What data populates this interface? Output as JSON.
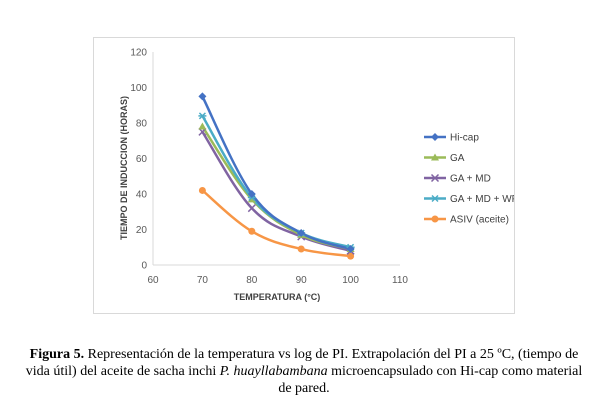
{
  "chart_data": {
    "type": "line",
    "xlabel": "TEMPERATURA (°C)",
    "ylabel": "TIEMPO DE INDUCCION (HORAS)",
    "xlim": [
      60,
      110
    ],
    "ylim": [
      0,
      120
    ],
    "xticks": [
      60,
      70,
      80,
      90,
      100,
      110
    ],
    "yticks": [
      0,
      20,
      40,
      60,
      80,
      100,
      120
    ],
    "grid": false,
    "legend_position": "right",
    "x": [
      70,
      80,
      90,
      100
    ],
    "series": [
      {
        "name": "Hi-cap",
        "values": [
          95,
          40,
          18,
          9
        ],
        "color": "#4472C4",
        "marker": "diamond"
      },
      {
        "name": "GA",
        "values": [
          78,
          37,
          17,
          9
        ],
        "color": "#9BBB59",
        "marker": "triangle"
      },
      {
        "name": "GA + MD",
        "values": [
          75,
          32,
          16,
          8
        ],
        "color": "#8064A2",
        "marker": "x"
      },
      {
        "name": "GA + MD + WPI",
        "values": [
          84,
          38,
          18,
          10
        ],
        "color": "#4BACC6",
        "marker": "star"
      },
      {
        "name": "ASIV (aceite)",
        "values": [
          42,
          19,
          9,
          5
        ],
        "color": "#F79646",
        "marker": "circle"
      }
    ]
  },
  "caption": {
    "label": "Figura 5.",
    "text_part1": " Representación de la temperatura vs log de PI. Extrapolación del PI a 25 ºC, (tiempo de vida útil) del aceite de sacha inchi ",
    "species": "P. huayllabambana",
    "text_part2": " microencapsulado con Hi-cap como material de pared."
  }
}
